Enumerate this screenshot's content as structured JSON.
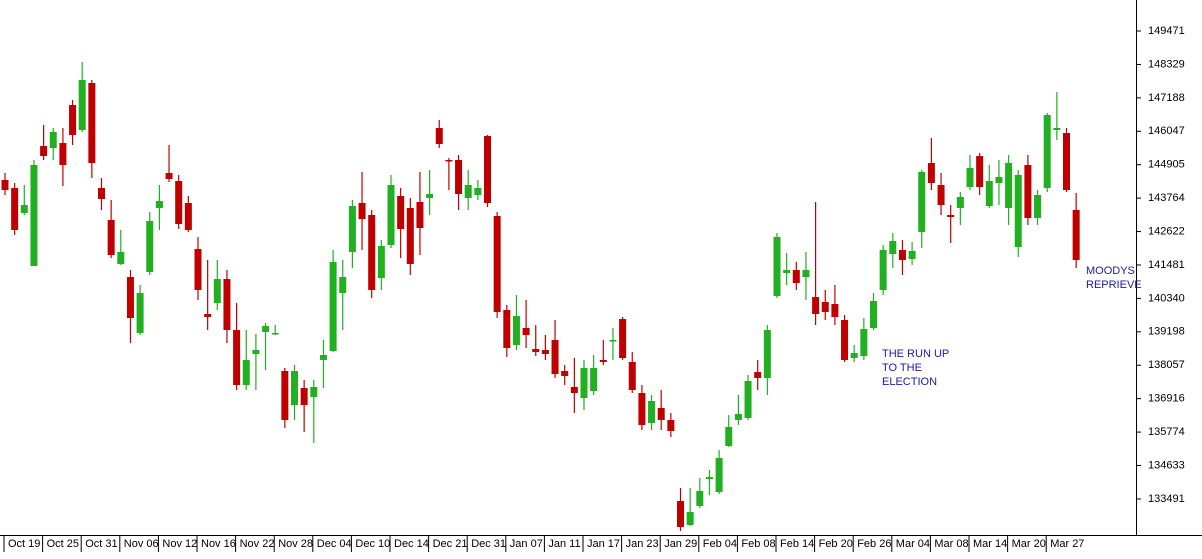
{
  "chart_data": {
    "type": "candlestick",
    "categories": [
      "Oct 19",
      null,
      null,
      null,
      "Oct 25",
      null,
      null,
      null,
      "Oct 31",
      null,
      null,
      null,
      "Nov 06",
      null,
      null,
      null,
      "Nov 12",
      null,
      null,
      null,
      "Nov 16",
      null,
      null,
      null,
      "Nov 22",
      null,
      null,
      null,
      "Nov 28",
      null,
      null,
      null,
      "Dec 04",
      null,
      null,
      null,
      "Dec 10",
      null,
      null,
      null,
      "Dec 14",
      null,
      null,
      null,
      "Dec 21",
      null,
      null,
      null,
      "Dec 31",
      null,
      null,
      null,
      "Jan 07",
      null,
      null,
      null,
      "Jan 11",
      null,
      null,
      null,
      "Jan 17",
      null,
      null,
      null,
      "Jan 23",
      null,
      null,
      null,
      "Jan 29",
      null,
      null,
      null,
      "Feb 04",
      null,
      null,
      null,
      "Feb 08",
      null,
      null,
      null,
      "Feb 14",
      null,
      null,
      null,
      "Feb 20",
      null,
      null,
      null,
      "Feb 26",
      null,
      null,
      null,
      "Mar 04",
      null,
      null,
      null,
      "Mar 08",
      null,
      null,
      null,
      "Mar 14",
      null,
      null,
      null,
      "Mar 20",
      null,
      null,
      null,
      "Mar 27",
      null,
      null,
      null
    ],
    "open": [
      144383,
      144110,
      143257,
      141446,
      145544,
      145476,
      145647,
      146944,
      146091,
      147696,
      144110,
      143017,
      141514,
      141071,
      139159,
      141242,
      143427,
      144622,
      144349,
      143598,
      142027,
      139807,
      140183,
      141002,
      139261,
      137382,
      138441,
      139193,
      139124,
      137861,
      136699,
      137280,
      136973,
      138236,
      138544,
      140525,
      141925,
      143598,
      143188,
      141036,
      142163,
      143837,
      143427,
      143632,
      143768,
      146159,
      145066,
      145066,
      143768,
      143871,
      145886,
      143154,
      139944,
      138749,
      139329,
      138612,
      138578,
      138919,
      137861,
      137314,
      136938,
      137178,
      138236,
      138885,
      139636,
      138168,
      137109,
      136085,
      136597,
      136187,
      133421,
      132602,
      133250,
      134172,
      133729,
      135299,
      136187,
      136256,
      137827,
      137621,
      140422,
      141207,
      141310,
      141071,
      140388,
      140217,
      140149,
      139602,
      138304,
      138373,
      139329,
      140627,
      141856,
      141993,
      141686,
      142608,
      144964,
      144212,
      143188,
      143427,
      144144,
      145203,
      143495,
      144281,
      143427,
      142095,
      144895,
      143085,
      144110,
      146091,
      145988,
      143359
    ],
    "high": [
      144622,
      144281,
      144212,
      145066,
      146261,
      146159,
      146159,
      147115,
      148413,
      147798,
      144452,
      143700,
      142676,
      141310,
      140797,
      143291,
      144212,
      145578,
      144554,
      143837,
      142437,
      141651,
      141651,
      141310,
      140183,
      139261,
      139124,
      139500,
      139431,
      137963,
      138065,
      137553,
      137553,
      138919,
      141993,
      141651,
      143700,
      144657,
      143359,
      142334,
      144554,
      144110,
      143768,
      144657,
      144725,
      146432,
      145134,
      145237,
      144725,
      144383,
      145920,
      143291,
      140115,
      140456,
      140285,
      139431,
      139090,
      139602,
      138065,
      138304,
      138236,
      138407,
      138919,
      139329,
      139705,
      138510,
      137382,
      137041,
      137212,
      136426,
      133865,
      133865,
      134206,
      134480,
      135163,
      136358,
      137041,
      137724,
      138236,
      139431,
      142574,
      141890,
      141583,
      141925,
      143632,
      140627,
      140797,
      139773,
      138749,
      139671,
      140525,
      142163,
      142574,
      142334,
      142266,
      144725,
      145817,
      144622,
      143529,
      143974,
      145237,
      145305,
      144895,
      145066,
      145237,
      144725,
      145237,
      144042,
      146671,
      147388,
      146159,
      143939
    ],
    "low": [
      143871,
      142505,
      143188,
      141446,
      145066,
      145066,
      144178,
      145578,
      146023,
      144452,
      143359,
      141720,
      141480,
      138817,
      139090,
      141139,
      142676,
      144315,
      142710,
      142608,
      140285,
      139261,
      139944,
      138817,
      137212,
      137212,
      137212,
      137895,
      139090,
      135914,
      136187,
      135778,
      135402,
      137280,
      138510,
      139261,
      141378,
      141993,
      140353,
      140627,
      142061,
      141720,
      141139,
      141822,
      143188,
      145476,
      144042,
      143359,
      143359,
      143700,
      143461,
      139671,
      138339,
      138578,
      138646,
      138373,
      138236,
      137621,
      137382,
      136426,
      136529,
      137041,
      138065,
      138236,
      138236,
      137109,
      135846,
      135846,
      135846,
      135607,
      132397,
      132567,
      133182,
      133626,
      133660,
      135265,
      136016,
      136187,
      137212,
      137041,
      140353,
      140797,
      140627,
      140285,
      139431,
      139602,
      139431,
      138168,
      138168,
      138236,
      139261,
      140456,
      141378,
      141139,
      141480,
      142061,
      144042,
      143188,
      142232,
      142846,
      144042,
      143871,
      143427,
      143529,
      142846,
      141754,
      142846,
      142846,
      143974,
      145749,
      143974,
      141378
    ],
    "close": [
      144042,
      142676,
      143529,
      144895,
      145203,
      146023,
      144895,
      145920,
      147798,
      144964,
      143735,
      141822,
      141925,
      139671,
      140525,
      142983,
      143666,
      144417,
      142880,
      142676,
      140627,
      139705,
      141002,
      139261,
      137382,
      138236,
      138578,
      139398,
      139159,
      136187,
      137861,
      136699,
      137314,
      138407,
      141583,
      141071,
      143495,
      143051,
      140627,
      142129,
      144212,
      142710,
      141514,
      142744,
      143905,
      145612,
      145032,
      143905,
      144212,
      144110,
      143598,
      139876,
      138646,
      139739,
      139090,
      138510,
      138441,
      137758,
      137690,
      137109,
      137963,
      137963,
      138168,
      138919,
      138304,
      137212,
      136016,
      136836,
      136187,
      135812,
      132533,
      133045,
      133763,
      134240,
      134890,
      135948,
      136392,
      137519,
      137621,
      139261,
      142437,
      141310,
      140866,
      141310,
      139807,
      139876,
      139705,
      138236,
      138475,
      139295,
      140251,
      141993,
      142300,
      141651,
      141959,
      144657,
      144281,
      143529,
      143120,
      143803,
      144793,
      144144,
      144349,
      144486,
      144964,
      144554,
      143085,
      143871,
      146603,
      146159,
      144042,
      141651
    ],
    "up_color": "#20b020",
    "down_color": "#c00000",
    "ylim": [
      132260,
      150530
    ],
    "yticks": [
      149471,
      148329,
      147188,
      146047,
      144905,
      143764,
      142622,
      141481,
      140340,
      139198,
      138057,
      136916,
      135774,
      134633,
      133491
    ],
    "annotations": [
      [
        "THE RUN UP",
        "TO THE",
        "ELECTION"
      ],
      [
        "MOODYS",
        "REPRIEVE"
      ]
    ]
  }
}
